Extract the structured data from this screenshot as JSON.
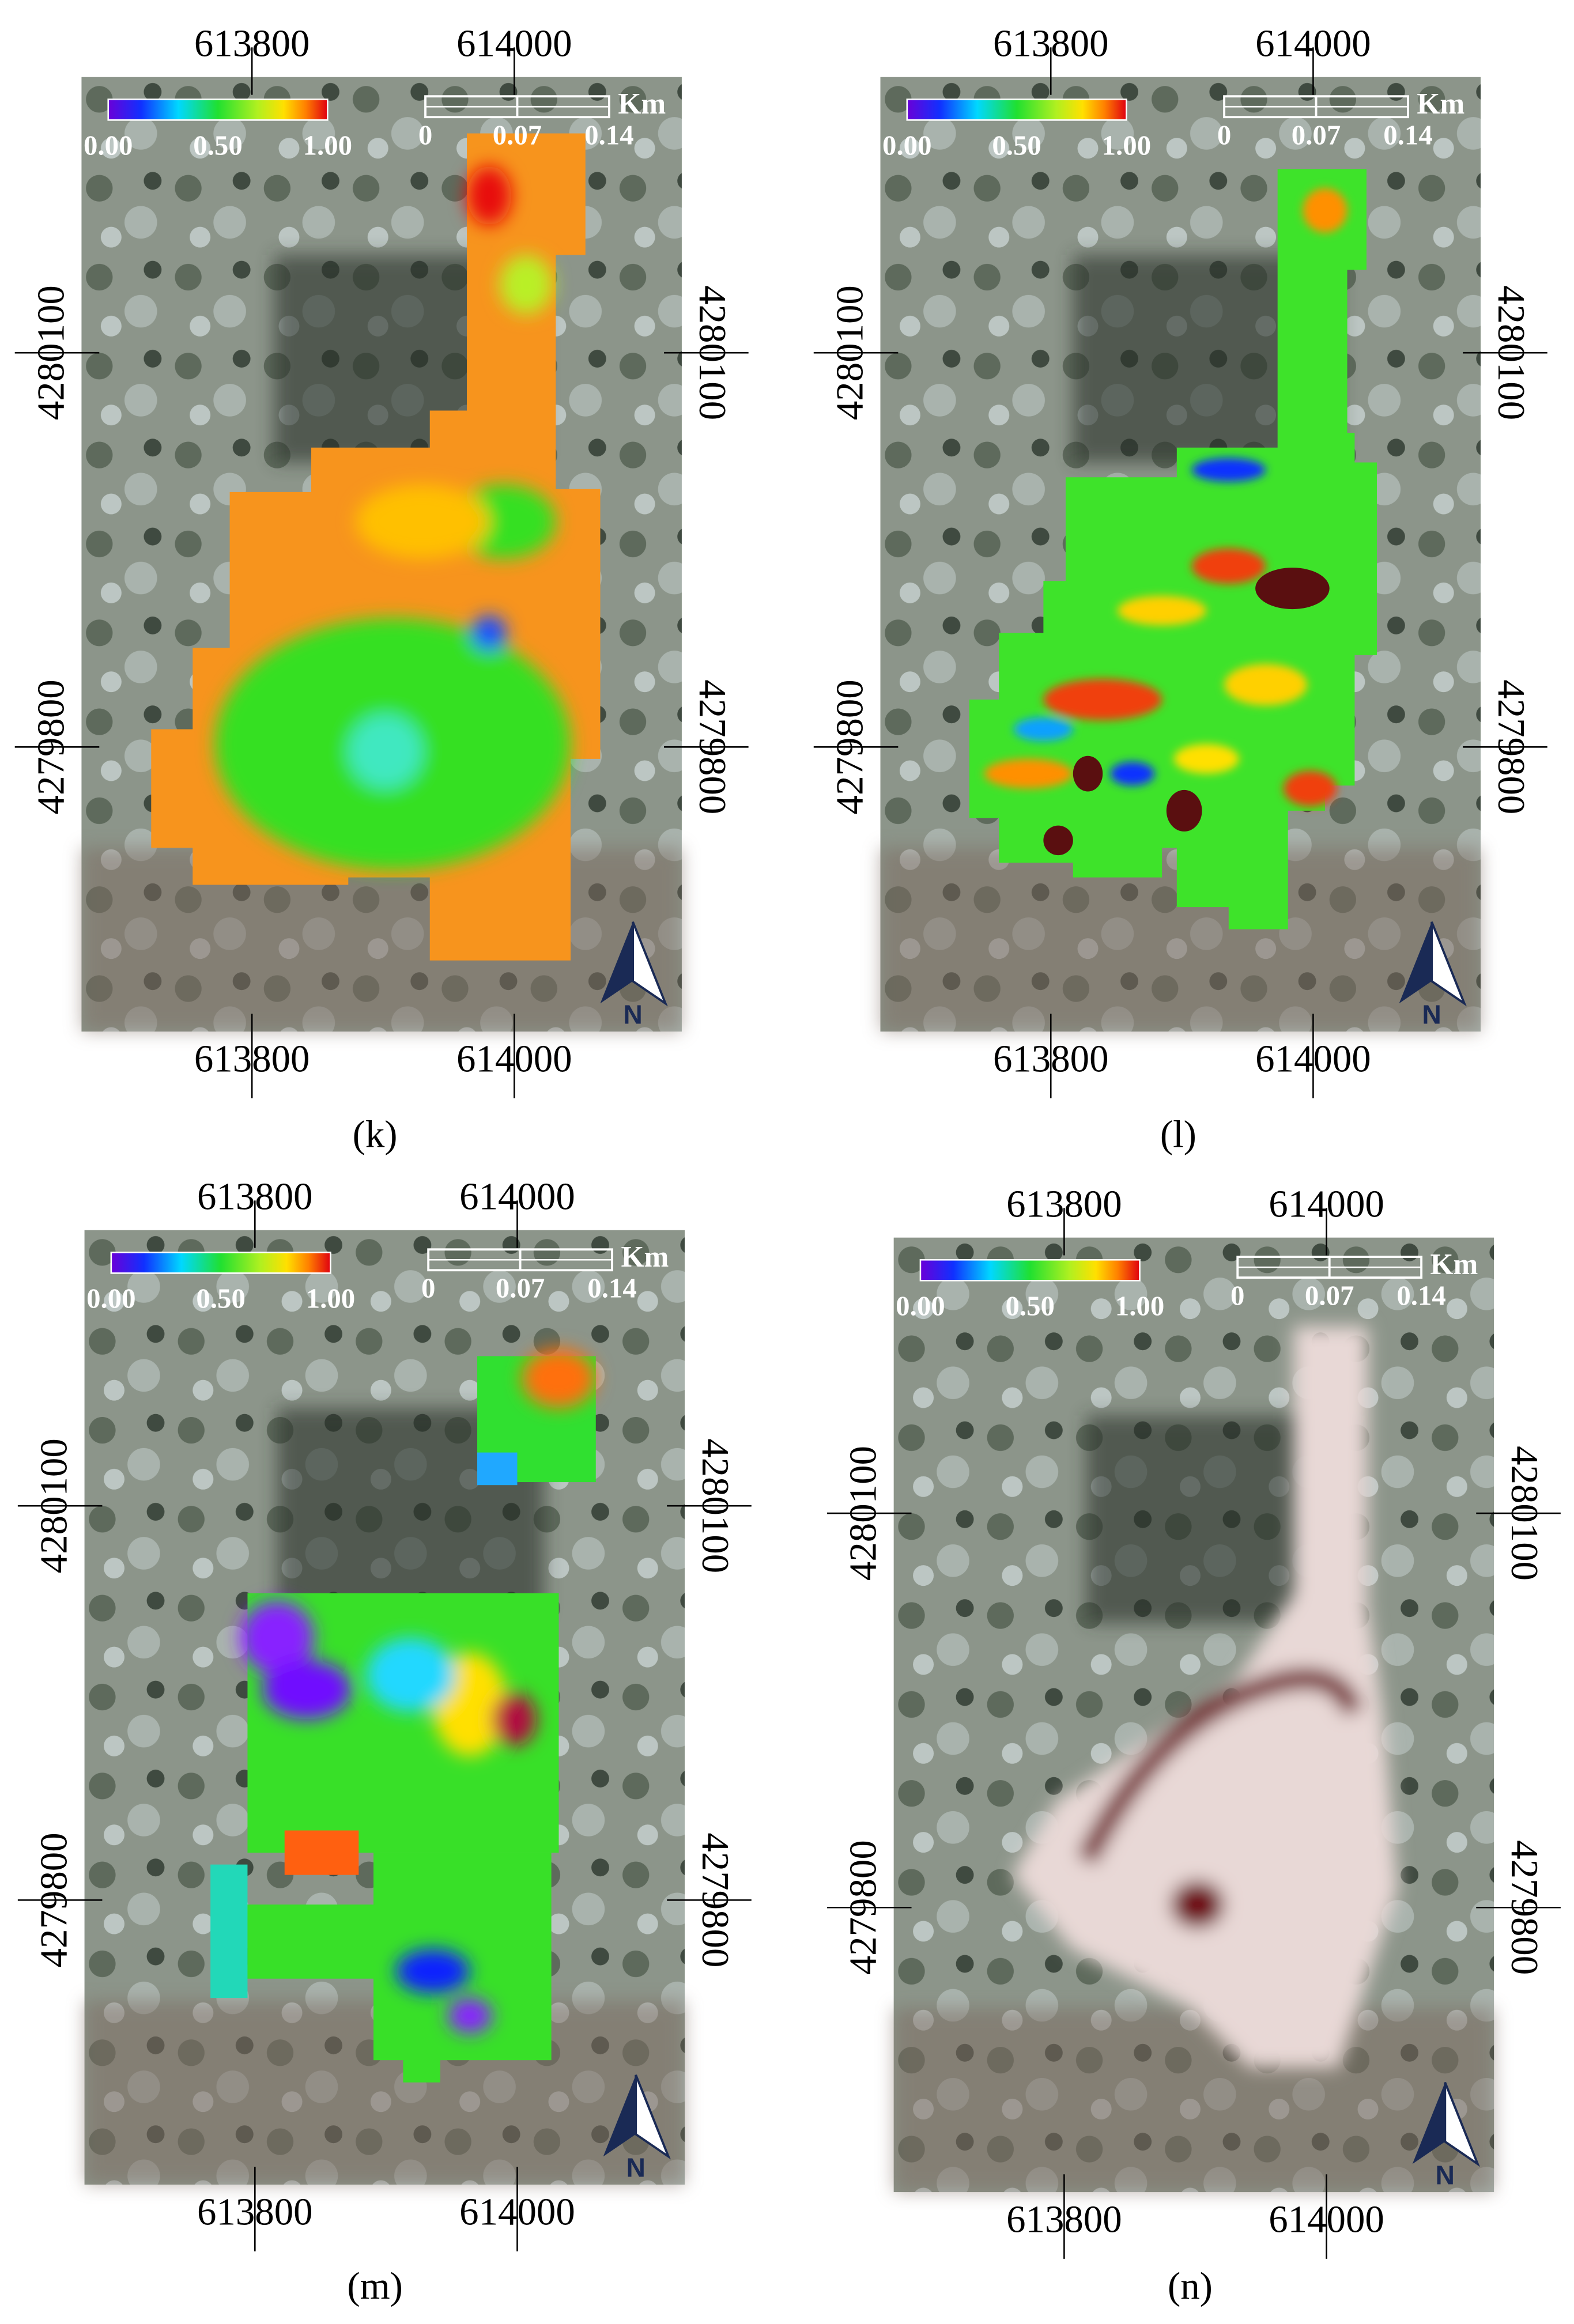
{
  "panels": [
    {
      "label": "(k)"
    },
    {
      "label": "(l)"
    },
    {
      "label": "(m)"
    },
    {
      "label": "(n)"
    }
  ],
  "map_labels": {
    "x_ticks": [
      "613800",
      "614000"
    ],
    "y_ticks": [
      "4280100",
      "4279800"
    ],
    "colorbar_ticks": [
      "0.00",
      "0.50",
      "1.00"
    ],
    "scale_ticks": [
      "0",
      "0.07",
      "0.14"
    ],
    "scale_unit": "Km",
    "north": "N"
  }
}
